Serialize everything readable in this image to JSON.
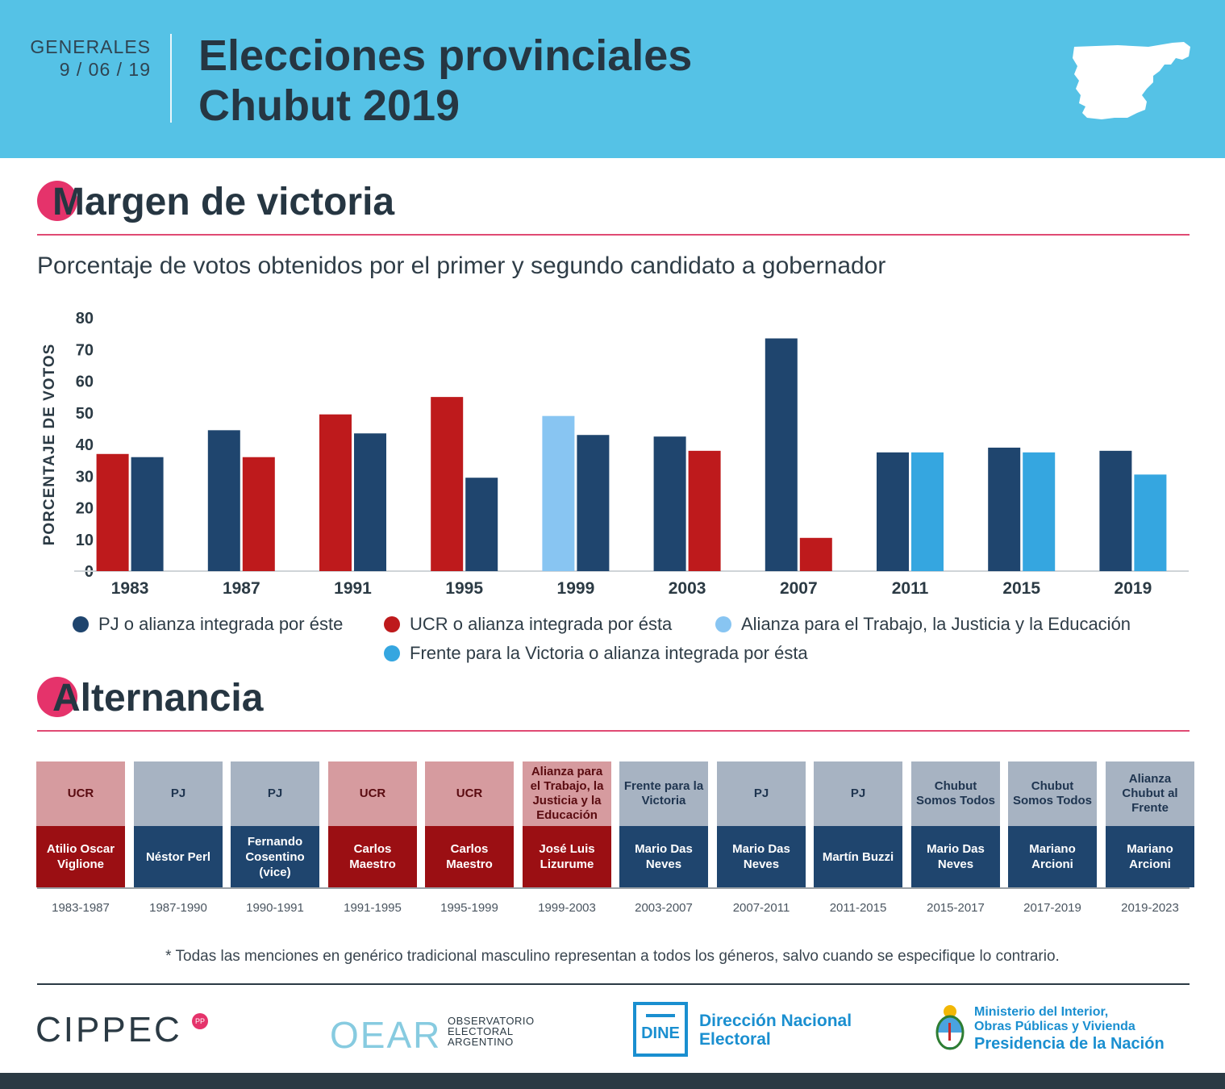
{
  "header": {
    "date_label": "GENERALES",
    "date_value": "9 / 06 / 19",
    "title_line1": "Elecciones provinciales",
    "title_line2": "Chubut 2019"
  },
  "section1": {
    "title": "Margen de victoria",
    "subtitle": "Porcentaje de votos obtenidos por el primer y segundo candidato a gobernador"
  },
  "colors": {
    "pj": "#1f456e",
    "ucr": "#be1a1c",
    "alianza": "#88c5f2",
    "fpv": "#35a6e0",
    "header_bg": "#55c2e6",
    "accent": "#e5336b"
  },
  "chart_data": {
    "type": "bar",
    "ylabel": "PORCENTAJE DE VOTOS",
    "ylim": [
      0,
      80
    ],
    "yticks": [
      0,
      10,
      20,
      30,
      40,
      50,
      60,
      70,
      80
    ],
    "categories": [
      "1983",
      "1987",
      "1991",
      "1995",
      "1999",
      "2003",
      "2007",
      "2011",
      "2015",
      "2019"
    ],
    "groups": [
      {
        "year": "1983",
        "bars": [
          {
            "party": "ucr",
            "value": 37
          },
          {
            "party": "pj",
            "value": 36
          }
        ]
      },
      {
        "year": "1987",
        "bars": [
          {
            "party": "pj",
            "value": 44.5
          },
          {
            "party": "ucr",
            "value": 36
          }
        ]
      },
      {
        "year": "1991",
        "bars": [
          {
            "party": "ucr",
            "value": 49.5
          },
          {
            "party": "pj",
            "value": 43.5
          }
        ]
      },
      {
        "year": "1995",
        "bars": [
          {
            "party": "ucr",
            "value": 55
          },
          {
            "party": "pj",
            "value": 29.5
          }
        ]
      },
      {
        "year": "1999",
        "bars": [
          {
            "party": "alianza",
            "value": 49
          },
          {
            "party": "pj",
            "value": 43
          }
        ]
      },
      {
        "year": "2003",
        "bars": [
          {
            "party": "pj",
            "value": 42.5
          },
          {
            "party": "ucr",
            "value": 38
          }
        ]
      },
      {
        "year": "2007",
        "bars": [
          {
            "party": "pj",
            "value": 73.5
          },
          {
            "party": "ucr",
            "value": 10.5
          }
        ]
      },
      {
        "year": "2011",
        "bars": [
          {
            "party": "pj",
            "value": 37.5
          },
          {
            "party": "fpv",
            "value": 37.5
          }
        ]
      },
      {
        "year": "2015",
        "bars": [
          {
            "party": "pj",
            "value": 39
          },
          {
            "party": "fpv",
            "value": 37.5
          }
        ]
      },
      {
        "year": "2019",
        "bars": [
          {
            "party": "pj",
            "value": 38
          },
          {
            "party": "fpv",
            "value": 30.5
          }
        ]
      }
    ]
  },
  "legend": {
    "pj": "PJ o alianza integrada por éste",
    "ucr": "UCR o alianza integrada por ésta",
    "alianza": "Alianza para el Trabajo, la Justicia y la Educación",
    "fpv": "Frente para la Victoria o alianza integrada por ésta"
  },
  "section2": {
    "title": "Alternancia",
    "columns": [
      {
        "party": "UCR",
        "person": "Atilio Oscar Viglione",
        "period": "1983-1987",
        "type": "ucr"
      },
      {
        "party": "PJ",
        "person": "Néstor Perl",
        "period": "1987-1990",
        "type": "pj"
      },
      {
        "party": "PJ",
        "person": "Fernando Cosentino (vice)",
        "period": "1990-1991",
        "type": "pj"
      },
      {
        "party": "UCR",
        "person": "Carlos Maestro",
        "period": "1991-1995",
        "type": "ucr"
      },
      {
        "party": "UCR",
        "person": "Carlos Maestro",
        "period": "1995-1999",
        "type": "ucr"
      },
      {
        "party": "Alianza para el Trabajo, la Justicia y la Educación",
        "person": "José Luis Lizurume",
        "period": "1999-2003",
        "type": "ucr"
      },
      {
        "party": "Frente para la Victoria",
        "person": "Mario Das Neves",
        "period": "2003-2007",
        "type": "pj"
      },
      {
        "party": "PJ",
        "person": "Mario Das Neves",
        "period": "2007-2011",
        "type": "pj"
      },
      {
        "party": "PJ",
        "person": "Martín Buzzi",
        "period": "2011-2015",
        "type": "pj"
      },
      {
        "party": "Chubut Somos Todos",
        "person": "Mario Das Neves",
        "period": "2015-2017",
        "type": "pj"
      },
      {
        "party": "Chubut Somos Todos",
        "person": "Mariano Arcioni",
        "period": "2017-2019",
        "type": "pj"
      },
      {
        "party": "Alianza Chubut al Frente",
        "person": "Mariano Arcioni",
        "period": "2019-2023",
        "type": "pj"
      }
    ]
  },
  "footnote": "* Todas las menciones en genérico tradicional masculino representan a todos los géneros, salvo cuando se especifique lo contrario.",
  "logos": {
    "cippec": "CIPPEC",
    "cippec_badge": "PP",
    "oear": "OEAR",
    "oear_text1": "OBSERVATORIO",
    "oear_text2": "ELECTORAL",
    "oear_text3": "ARGENTINO",
    "dine": "DINE",
    "dine_text1": "Dirección Nacional",
    "dine_text2": "Electoral",
    "min_text1": "Ministerio del Interior,",
    "min_text2": "Obras Públicas y Vivienda",
    "min_text3": "Presidencia de la Nación"
  }
}
